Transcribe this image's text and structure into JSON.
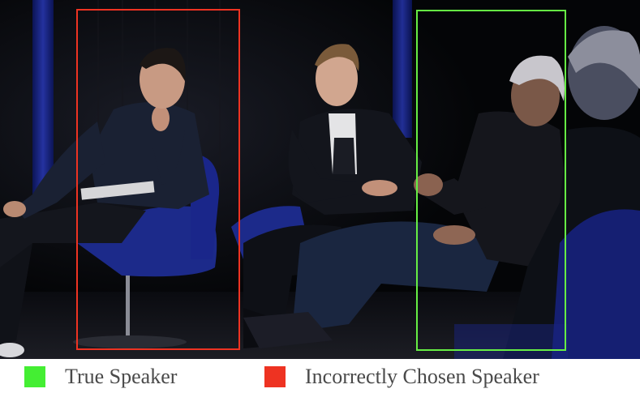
{
  "scene": {
    "description_icon": "stage-panel-photo"
  },
  "annotations": {
    "incorrect_color": "#ee3322",
    "true_color": "#66ee44"
  },
  "legend": {
    "true_speaker": {
      "label": "True Speaker",
      "color": "#44ee33"
    },
    "incorrect_speaker": {
      "label": "Incorrectly Chosen Speaker",
      "color": "#ee3322"
    }
  }
}
